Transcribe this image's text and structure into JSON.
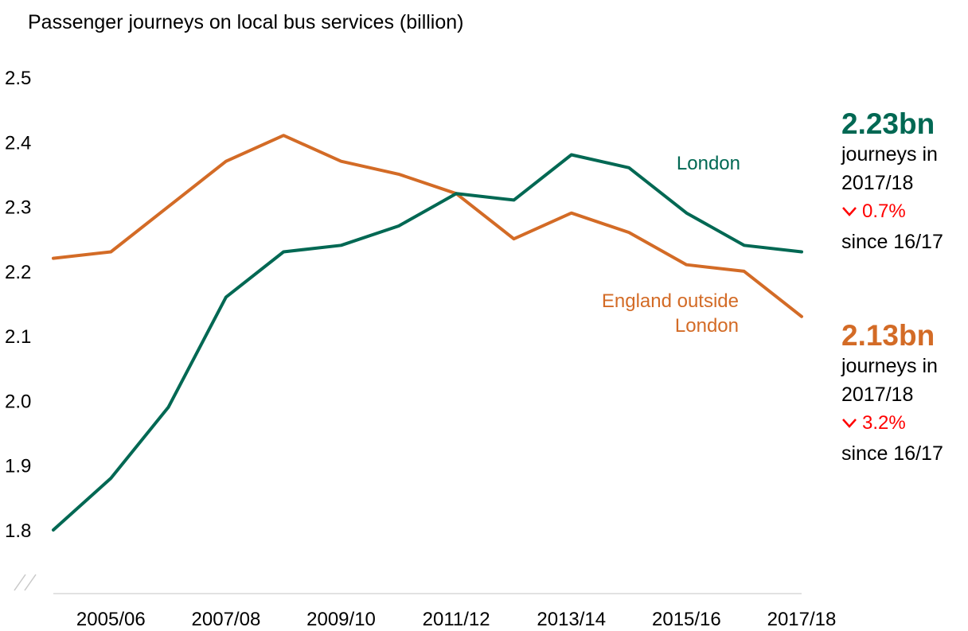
{
  "chart_data": {
    "type": "line",
    "title": "Passenger journeys on local bus services (billion)",
    "x_ticks": [
      "2005/06",
      "2007/08",
      "2009/10",
      "2011/12",
      "2013/14",
      "2015/16",
      "2017/18"
    ],
    "x": [
      "2004/05",
      "2005/06",
      "2006/07",
      "2007/08",
      "2008/09",
      "2009/10",
      "2010/11",
      "2011/12",
      "2012/13",
      "2013/14",
      "2014/15",
      "2015/16",
      "2016/17",
      "2017/18"
    ],
    "y_ticks": [
      "1.8",
      "1.9",
      "2.0",
      "2.1",
      "2.2",
      "2.3",
      "2.4",
      "2.5"
    ],
    "ylim": [
      1.8,
      2.5
    ],
    "axis_break": true,
    "series": [
      {
        "name": "London",
        "color": "#006853",
        "values": [
          1.8,
          1.88,
          1.99,
          2.16,
          2.23,
          2.24,
          2.27,
          2.32,
          2.31,
          2.38,
          2.36,
          2.29,
          2.24,
          2.23
        ]
      },
      {
        "name": "England outside London",
        "label_lines": [
          "England outside",
          "London"
        ],
        "color": "#d36b26",
        "values": [
          2.22,
          2.23,
          2.3,
          2.37,
          2.41,
          2.37,
          2.35,
          2.32,
          2.25,
          2.29,
          2.26,
          2.21,
          2.2,
          2.13
        ]
      }
    ]
  },
  "annotations": {
    "london": {
      "value": "2.23bn",
      "line1": "journeys in",
      "line2": "2017/18",
      "change": "0.7%",
      "since": "since 16/17",
      "color": "#006853"
    },
    "england": {
      "value": "2.13bn",
      "line1": "journeys in",
      "line2": "2017/18",
      "change": "3.2%",
      "since": "since 16/17",
      "color": "#d36b26"
    }
  }
}
